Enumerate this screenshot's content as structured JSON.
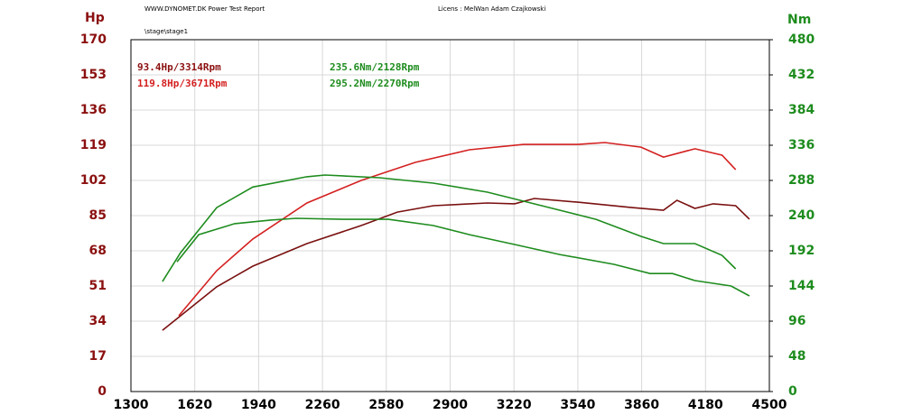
{
  "chart_data": {
    "type": "line",
    "header_left": "WWW.DYNOMET.DK  Power Test Report",
    "header_right": "Licens :  MelWan Adam Czajkowski",
    "subtitle": "\\stage\\stage1",
    "ylabel": "Hp",
    "y2label": "Nm",
    "xlim": [
      1300,
      4500
    ],
    "xticks": [
      1300,
      1620,
      1940,
      2260,
      2580,
      2900,
      3220,
      3540,
      3860,
      4180,
      4500
    ],
    "ylim": [
      0,
      170
    ],
    "yticks": [
      0,
      17,
      34,
      51,
      68,
      85,
      102,
      119,
      136,
      153,
      170
    ],
    "ycolor": "#8b1010",
    "y2lim": [
      0,
      480
    ],
    "y2ticks": [
      0,
      48,
      96,
      144,
      192,
      240,
      288,
      336,
      384,
      432,
      480
    ],
    "y2color": "#1e8c1e",
    "grid": true,
    "annotations": [
      {
        "text": "93.4Hp/3314Rpm",
        "color": "#8b1010"
      },
      {
        "text": "119.8Hp/3671Rpm",
        "color": "#d42020"
      },
      {
        "text": "235.6Nm/2128Rpm",
        "color": "#1e8c1e"
      },
      {
        "text": "295.2Nm/2270Rpm",
        "color": "#1e8c1e"
      }
    ],
    "series": [
      {
        "color": "#7a1010",
        "x": [
          1458,
          1549,
          1730,
          1911,
          2182,
          2454,
          2635,
          2816,
          3087,
          3223,
          3322,
          3540,
          3811,
          3969,
          4037,
          4127,
          4218,
          4331,
          4400
        ],
        "values": [
          29.6,
          36.6,
          50.6,
          60.6,
          71.5,
          80.2,
          86.7,
          89.8,
          91.1,
          90.7,
          93.3,
          91.5,
          88.9,
          87.6,
          92.4,
          88.5,
          90.7,
          89.8,
          83.3
        ]
      },
      {
        "color": "#d42020",
        "x": [
          1540,
          1730,
          1911,
          2182,
          2454,
          2725,
          2997,
          3268,
          3540,
          3676,
          3857,
          3969,
          4127,
          4263,
          4331
        ],
        "values": [
          36.6,
          58.4,
          73.7,
          91.1,
          102,
          110.7,
          116.8,
          119.4,
          119.4,
          120.3,
          118.1,
          113.3,
          117.3,
          114.2,
          107.2
        ]
      },
      {
        "color": "#1e8c1e",
        "axis": "y2",
        "x": [
          1458,
          1549,
          1730,
          1911,
          2182,
          2273,
          2545,
          2816,
          3087,
          3359,
          3631,
          3857,
          3969,
          4127,
          4263,
          4331
        ],
        "values": [
          150,
          189.5,
          251,
          279,
          293,
          295.4,
          291.7,
          284.3,
          272,
          253.5,
          235,
          211.7,
          201.8,
          201.8,
          185.8,
          167.4
        ]
      },
      {
        "color": "#1e8c1e",
        "axis": "y2",
        "x": [
          1531,
          1640,
          1820,
          2001,
          2128,
          2363,
          2590,
          2816,
          2997,
          3223,
          3449,
          3721,
          3902,
          4015,
          4127,
          4308,
          4400
        ],
        "values": [
          177,
          214,
          229,
          234,
          236.3,
          235,
          235,
          226.5,
          214,
          200.6,
          187,
          173.5,
          161,
          161,
          151.4,
          144,
          130.5
        ]
      }
    ]
  }
}
